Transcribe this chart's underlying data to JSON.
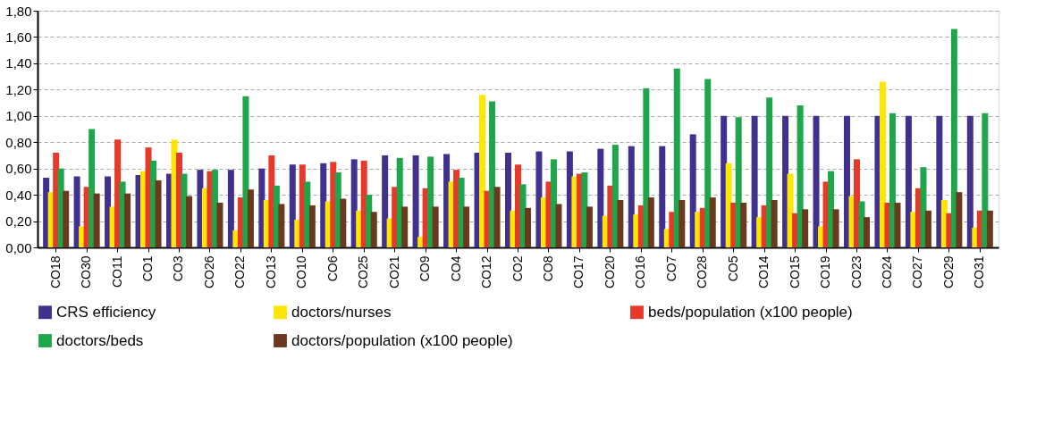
{
  "chart_data": {
    "type": "bar",
    "categories": [
      "CO18",
      "CO30",
      "CO11",
      "CO1",
      "CO3",
      "CO26",
      "CO22",
      "CO13",
      "CO10",
      "CO6",
      "CO25",
      "CO21",
      "CO9",
      "CO4",
      "CO12",
      "CO2",
      "CO8",
      "CO17",
      "CO20",
      "CO16",
      "CO7",
      "CO28",
      "CO5",
      "CO14",
      "CO15",
      "CO19",
      "CO23",
      "CO24",
      "CO27",
      "CO29",
      "CO31"
    ],
    "series": [
      {
        "name": "CRS efficiency",
        "color": "#40308f",
        "values": [
          0.53,
          0.54,
          0.54,
          0.55,
          0.56,
          0.59,
          0.59,
          0.6,
          0.63,
          0.64,
          0.67,
          0.7,
          0.7,
          0.71,
          0.72,
          0.72,
          0.73,
          0.73,
          0.75,
          0.77,
          0.77,
          0.86,
          1.0,
          1.0,
          1.0,
          1.0,
          1.0,
          1.0,
          1.0,
          1.0,
          1.0
        ]
      },
      {
        "name": "doctors/nurses",
        "color": "#ffe600",
        "values": [
          0.42,
          0.16,
          0.31,
          0.58,
          0.82,
          0.45,
          0.13,
          0.36,
          0.21,
          0.35,
          0.28,
          0.22,
          0.08,
          0.5,
          1.16,
          0.28,
          0.38,
          0.54,
          0.24,
          0.25,
          0.14,
          0.27,
          0.64,
          0.23,
          0.56,
          0.16,
          0.39,
          1.26,
          0.27,
          0.36,
          0.15
        ]
      },
      {
        "name": "beds/population (x100 people)",
        "color": "#e8382a",
        "values": [
          0.72,
          0.46,
          0.82,
          0.76,
          0.72,
          0.58,
          0.38,
          0.7,
          0.63,
          0.65,
          0.66,
          0.46,
          0.45,
          0.59,
          0.43,
          0.63,
          0.5,
          0.56,
          0.47,
          0.32,
          0.27,
          0.3,
          0.34,
          0.32,
          0.26,
          0.5,
          0.67,
          0.34,
          0.45,
          0.26,
          0.28
        ]
      },
      {
        "name": "doctors/beds",
        "color": "#1fa64a",
        "values": [
          0.6,
          0.9,
          0.5,
          0.66,
          0.56,
          0.59,
          1.15,
          0.47,
          0.5,
          0.57,
          0.4,
          0.68,
          0.69,
          0.53,
          1.11,
          0.48,
          0.67,
          0.57,
          0.78,
          1.21,
          1.36,
          1.28,
          0.99,
          1.14,
          1.08,
          0.58,
          0.35,
          1.02,
          0.61,
          1.66,
          1.02
        ]
      },
      {
        "name": "doctors/population (x100 people)",
        "color": "#6b3a1e",
        "values": [
          0.43,
          0.41,
          0.41,
          0.51,
          0.39,
          0.34,
          0.44,
          0.33,
          0.32,
          0.37,
          0.27,
          0.31,
          0.31,
          0.31,
          0.46,
          0.3,
          0.33,
          0.31,
          0.36,
          0.38,
          0.36,
          0.38,
          0.34,
          0.36,
          0.29,
          0.29,
          0.23,
          0.34,
          0.28,
          0.42,
          0.28
        ]
      }
    ],
    "ylim": [
      0,
      1.8
    ],
    "yticks": [
      {
        "value": 0,
        "label": "0,00"
      },
      {
        "value": 0.2,
        "label": "0,20"
      },
      {
        "value": 0.4,
        "label": "0,40"
      },
      {
        "value": 0.6,
        "label": "0,60"
      },
      {
        "value": 0.8,
        "label": "0,80"
      },
      {
        "value": 1.0,
        "label": "1,00"
      },
      {
        "value": 1.2,
        "label": "1,20"
      },
      {
        "value": 1.4,
        "label": "1,40"
      },
      {
        "value": 1.6,
        "label": "1,60"
      },
      {
        "value": 1.8,
        "label": "1,80"
      }
    ],
    "grid": "y",
    "legend": "bottom"
  }
}
